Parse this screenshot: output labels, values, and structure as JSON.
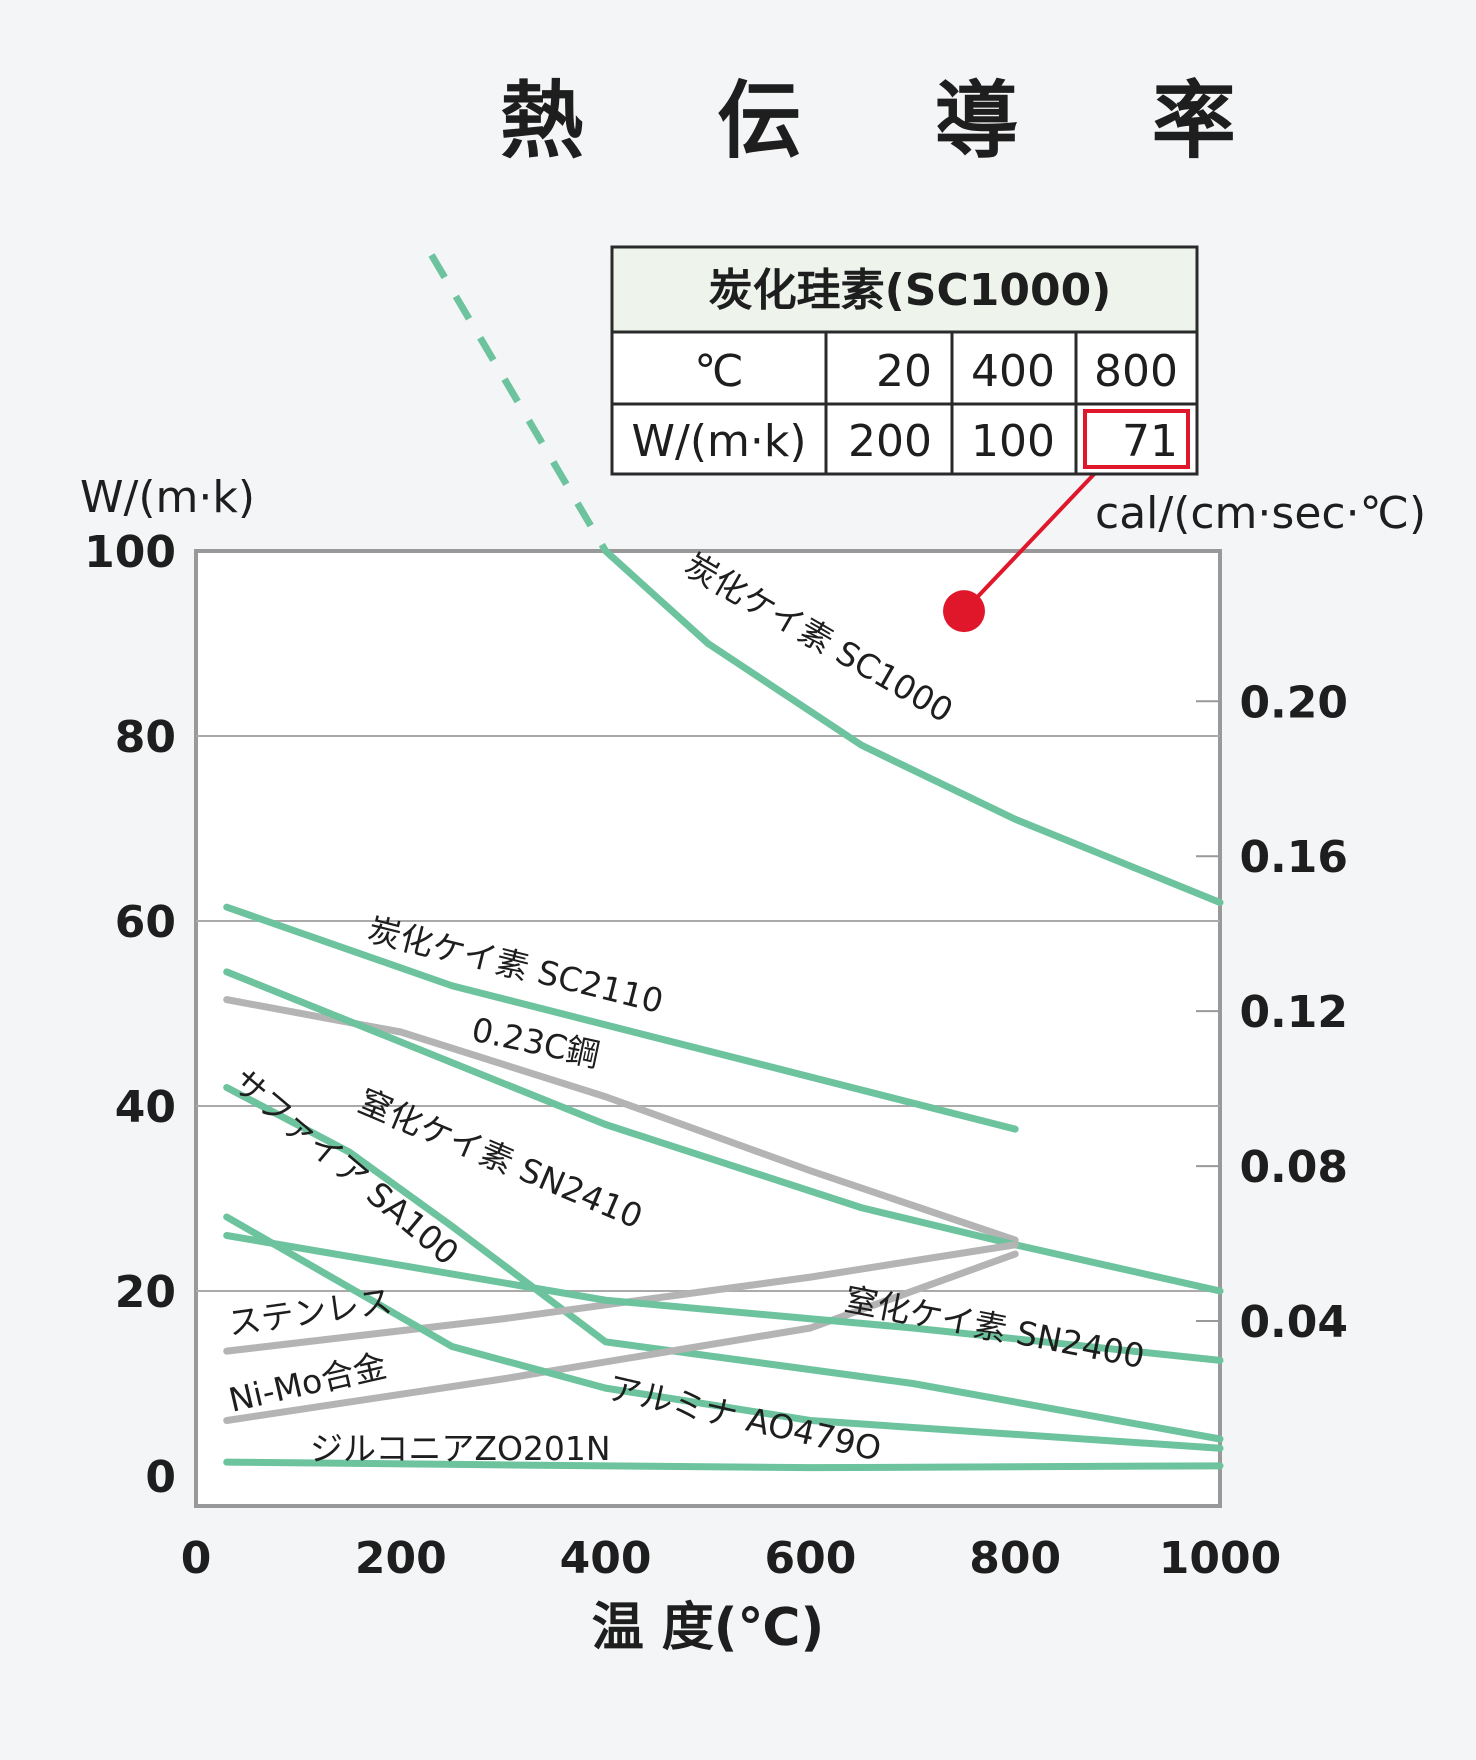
{
  "chart_data": {
    "type": "line",
    "title": "熱 伝 導 率",
    "xlabel": "温 度(℃)",
    "ylabel": "W/(m·k)",
    "y2label": "cal/(cm·sec·℃)",
    "xlim": [
      0,
      1000
    ],
    "ylim": [
      0,
      100
    ],
    "xticks": [
      "0",
      "200",
      "400",
      "600",
      "800",
      "1000"
    ],
    "yticks": [
      "0",
      "20",
      "40",
      "60",
      "80",
      "100"
    ],
    "y2ticks": [
      "0.04",
      "0.08",
      "0.12",
      "0.16",
      "0.20"
    ],
    "grid": "horizontal",
    "series": [
      {
        "name": "炭化ケイ素 SC1000",
        "color": "#6cc39d",
        "x": [
          400,
          500,
          650,
          800,
          1000
        ],
        "y": [
          100,
          90,
          79,
          71,
          62
        ],
        "dashed_x": [
          230,
          400
        ],
        "dashed_y": [
          132,
          100
        ]
      },
      {
        "name": "炭化ケイ素 SC2110",
        "color": "#6cc39d",
        "x": [
          30,
          250,
          800
        ],
        "y": [
          61.5,
          53,
          37.5
        ]
      },
      {
        "name": "0.23C鋼",
        "color": "#b4b4b4",
        "x": [
          30,
          200,
          400,
          600,
          800
        ],
        "y": [
          51.5,
          48,
          41,
          33,
          25.5
        ]
      },
      {
        "name": "窒化ケイ素 SN2410",
        "color": "#6cc39d",
        "x": [
          30,
          400,
          650,
          800,
          1000
        ],
        "y": [
          54.5,
          38,
          29,
          25,
          20
        ]
      },
      {
        "name": "サファイア SA100",
        "color": "#6cc39d",
        "x": [
          30,
          150,
          250,
          400,
          700,
          1000
        ],
        "y": [
          42,
          35,
          27,
          14.5,
          10,
          4
        ]
      },
      {
        "name": "ステンレス",
        "color": "#b4b4b4",
        "x": [
          30,
          300,
          600,
          800
        ],
        "y": [
          13.5,
          17,
          21.5,
          25
        ]
      },
      {
        "name": "Ni-Mo合金",
        "color": "#b4b4b4",
        "x": [
          30,
          300,
          600,
          800
        ],
        "y": [
          6,
          10.5,
          16,
          24
        ]
      },
      {
        "name": "窒化ケイ素 SN2400",
        "color": "#6cc39d",
        "x": [
          30,
          400,
          700,
          1000
        ],
        "y": [
          26,
          19,
          16,
          12.5
        ]
      },
      {
        "name": "アルミナ AO479O",
        "color": "#6cc39d",
        "x": [
          30,
          250,
          400,
          600,
          800,
          1000
        ],
        "y": [
          28,
          14,
          9.5,
          6,
          4.5,
          3
        ]
      },
      {
        "name": "ジルコニアZO201N",
        "color": "#6cc39d",
        "x": [
          30,
          300,
          600,
          1000
        ],
        "y": [
          1.5,
          1.2,
          0.9,
          1.1
        ]
      }
    ],
    "marker": {
      "x": 750,
      "y": 93.5,
      "color": "#e0162b"
    },
    "table": {
      "title": "炭化珪素(SC1000)",
      "row1_label": "℃",
      "row1": [
        "20",
        "400",
        "800"
      ],
      "row2_label": "W/(m·k)",
      "row2": [
        "200",
        "100",
        "71"
      ],
      "highlight_color": "#e0162b"
    }
  }
}
